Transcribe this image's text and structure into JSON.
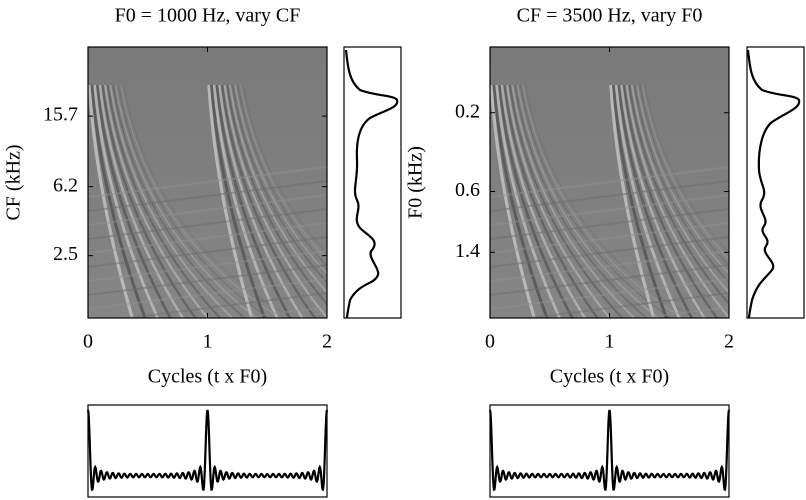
{
  "chart_data": [
    {
      "type": "heatmap",
      "title": "F0 = 1000 Hz, vary CF",
      "x_label": "Cycles (t x F0)",
      "y_label": "CF (kHz)",
      "xlim": [
        0,
        2
      ],
      "xticks": [
        0,
        1,
        2
      ],
      "ylim": [
        1.1,
        39
      ],
      "yticks": [
        15.7,
        6.2,
        2.5
      ],
      "y_log": true
    },
    {
      "type": "heatmap",
      "title": "CF = 3500 Hz, vary F0",
      "x_label": "Cycles (t x F0)",
      "y_label": "F0 (kHz)",
      "xlim": [
        0,
        2
      ],
      "xticks": [
        0,
        1,
        2
      ],
      "ylim": [
        3.5,
        0.08
      ],
      "yticks": [
        0.2,
        0.6,
        1.4
      ],
      "y_log": true
    }
  ]
}
